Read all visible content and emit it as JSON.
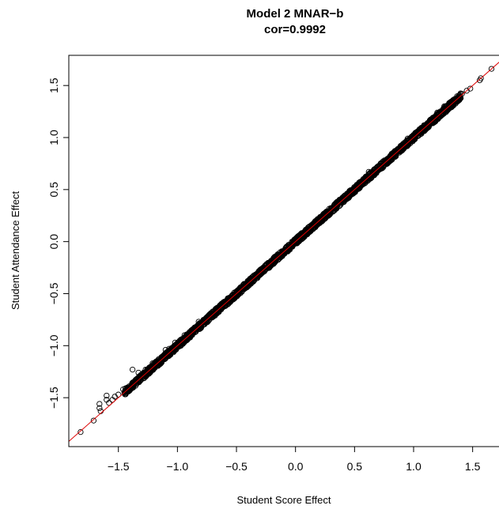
{
  "chart_data": {
    "type": "scatter",
    "title": "Model 2 MNAR−b",
    "subtitle": "cor=0.9992",
    "xlabel": "Student Score Effect",
    "ylabel": "Student Attendance Effect",
    "xlim": [
      -1.92,
      1.73
    ],
    "ylim": [
      -1.97,
      1.79
    ],
    "x_ticks": [
      -1.5,
      -1.0,
      -0.5,
      0.0,
      0.5,
      1.0,
      1.5
    ],
    "x_tick_labels": [
      "−1.5",
      "−1.0",
      "−0.5",
      "0.0",
      "0.5",
      "1.0",
      "1.5"
    ],
    "y_ticks": [
      -1.5,
      -1.0,
      -0.5,
      0.0,
      0.5,
      1.0,
      1.5
    ],
    "y_tick_labels": [
      "−1.5",
      "−1.0",
      "−0.5",
      "0.0",
      "0.5",
      "1.0",
      "1.5"
    ],
    "grid": false,
    "legend": "none",
    "point_color": "#000000",
    "reference_line": {
      "slope": 1,
      "intercept": 0,
      "color": "#dd0000"
    },
    "point_band": {
      "x_min": -1.45,
      "x_max": 1.4,
      "half_width": 0.03,
      "count": 2200
    },
    "points": [
      {
        "x": -1.82,
        "y": -1.83
      },
      {
        "x": -1.71,
        "y": -1.72
      },
      {
        "x": -1.66,
        "y": -1.6
      },
      {
        "x": -1.65,
        "y": -1.63
      },
      {
        "x": -1.66,
        "y": -1.56
      },
      {
        "x": -1.6,
        "y": -1.52
      },
      {
        "x": -1.6,
        "y": -1.48
      },
      {
        "x": -1.58,
        "y": -1.55
      },
      {
        "x": -1.55,
        "y": -1.52
      },
      {
        "x": -1.53,
        "y": -1.49
      },
      {
        "x": -1.5,
        "y": -1.47
      },
      {
        "x": -1.46,
        "y": -1.42
      },
      {
        "x": -1.44,
        "y": -1.41
      },
      {
        "x": -1.38,
        "y": -1.23
      },
      {
        "x": -1.33,
        "y": -1.26
      },
      {
        "x": -1.27,
        "y": -1.23
      },
      {
        "x": -1.21,
        "y": -1.17
      },
      {
        "x": -1.1,
        "y": -1.04
      },
      {
        "x": -1.07,
        "y": -1.03
      },
      {
        "x": -1.02,
        "y": -0.97
      },
      {
        "x": -0.94,
        "y": -0.9
      },
      {
        "x": -0.82,
        "y": -0.77
      },
      {
        "x": 0.62,
        "y": 0.67
      },
      {
        "x": 0.74,
        "y": 0.77
      },
      {
        "x": 0.85,
        "y": 0.82
      },
      {
        "x": 0.95,
        "y": 0.99
      },
      {
        "x": 1.05,
        "y": 1.08
      },
      {
        "x": 1.13,
        "y": 1.14
      },
      {
        "x": 1.2,
        "y": 1.24
      },
      {
        "x": 1.26,
        "y": 1.3
      },
      {
        "x": 1.3,
        "y": 1.33
      },
      {
        "x": 1.34,
        "y": 1.36
      },
      {
        "x": 1.37,
        "y": 1.38
      },
      {
        "x": 1.41,
        "y": 1.42
      },
      {
        "x": 1.45,
        "y": 1.45
      },
      {
        "x": 1.48,
        "y": 1.47
      },
      {
        "x": 1.56,
        "y": 1.55
      },
      {
        "x": 1.57,
        "y": 1.57
      },
      {
        "x": 1.66,
        "y": 1.66
      }
    ]
  }
}
